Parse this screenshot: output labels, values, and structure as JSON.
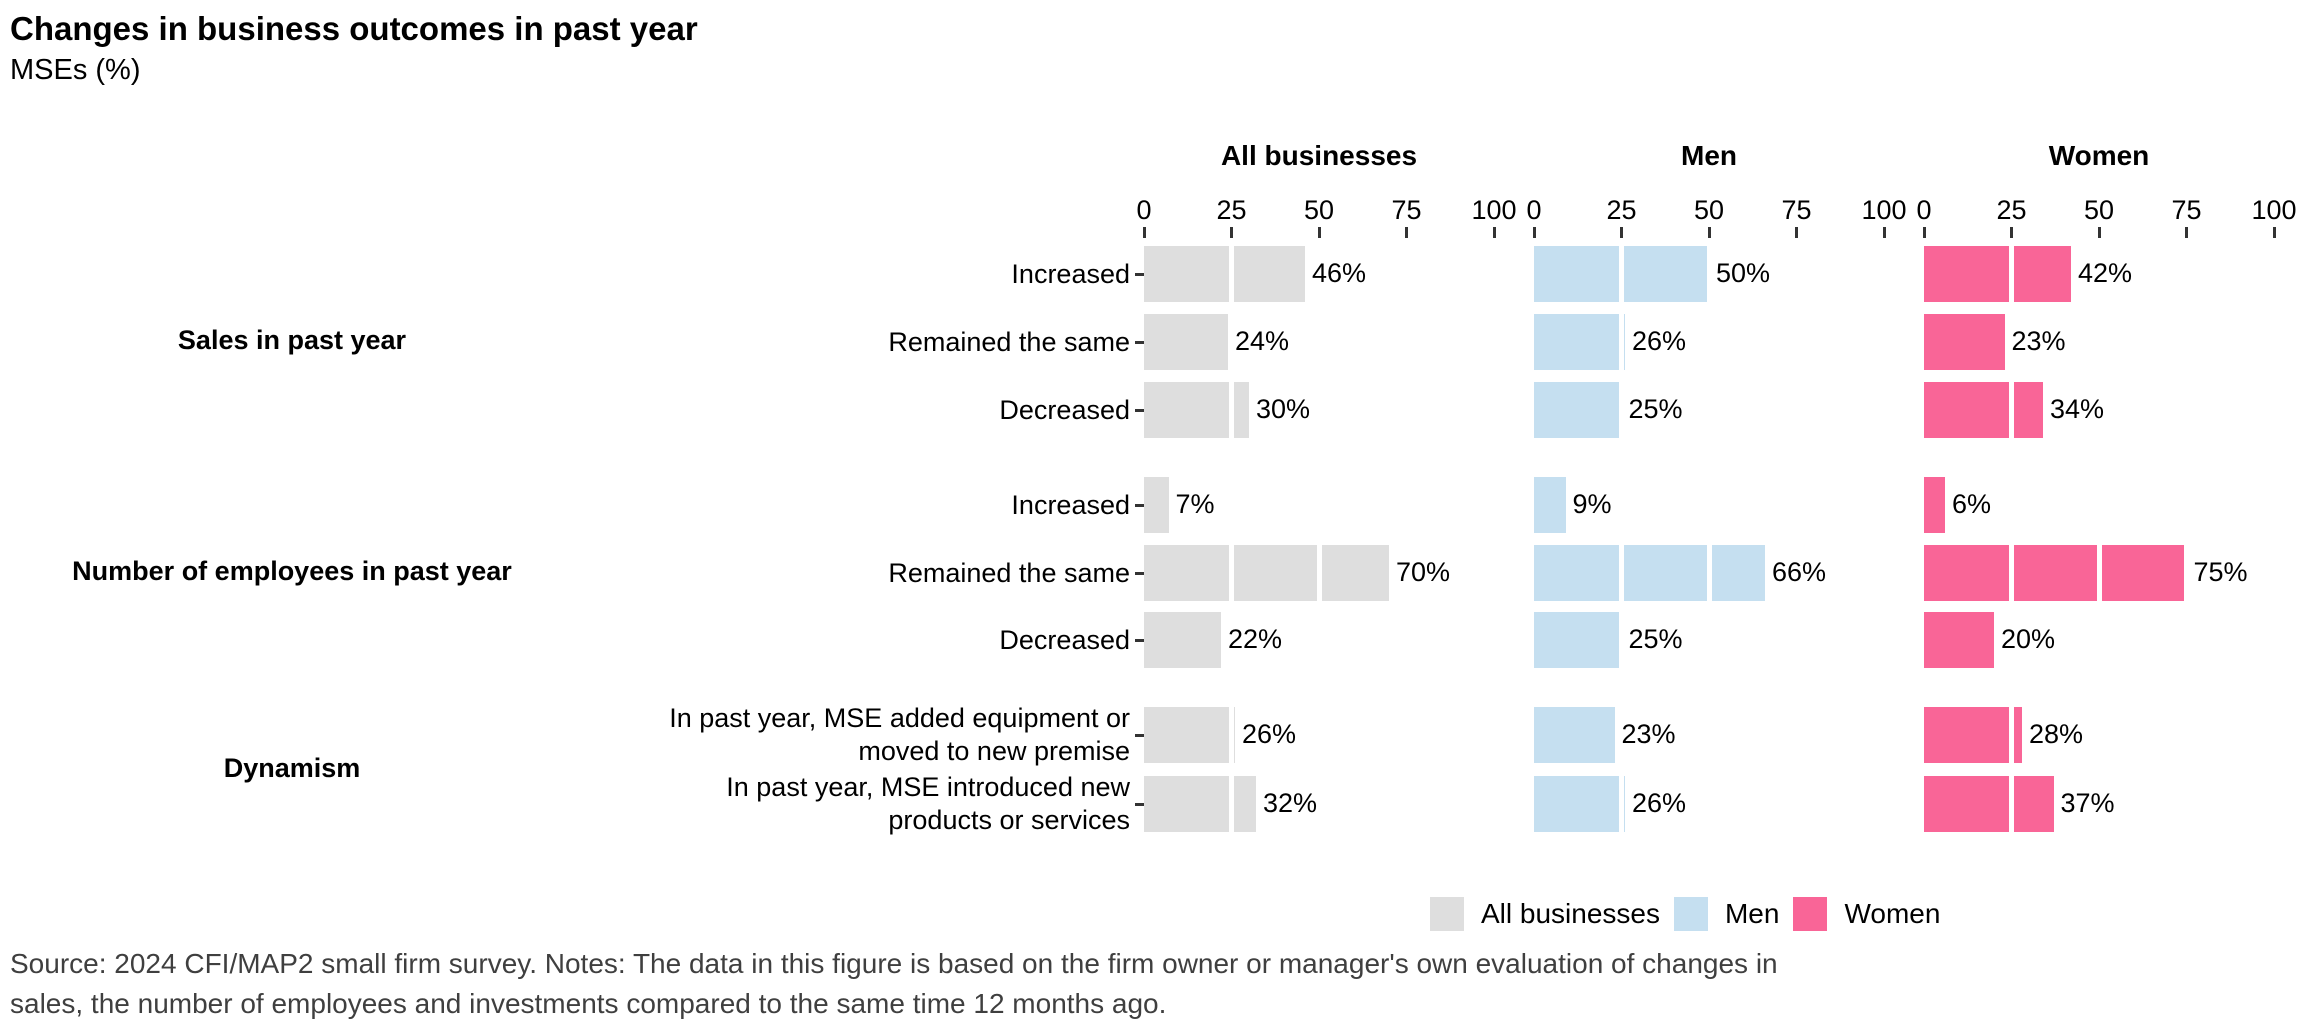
{
  "title": "Changes in business outcomes in past year",
  "subtitle": "MSEs (%)",
  "chart_data": {
    "type": "bar",
    "orientation": "horizontal",
    "value_suffix": "%",
    "axis": {
      "ticks": [
        0,
        25,
        50,
        75,
        100
      ],
      "range": [
        0,
        100
      ],
      "position": "top"
    },
    "panels": [
      "All businesses",
      "Men",
      "Women"
    ],
    "series_colors": {
      "All businesses": "#DEDEDE",
      "Men": "#C5DFF0",
      "Women": "#F96597"
    },
    "grid": "white-overlay-every-25",
    "groups": [
      {
        "label": "Sales in past year",
        "rows": [
          {
            "label": "Increased",
            "values": [
              46,
              50,
              42
            ]
          },
          {
            "label": "Remained the same",
            "values": [
              24,
              26,
              23
            ]
          },
          {
            "label": "Decreased",
            "values": [
              30,
              25,
              34
            ]
          }
        ]
      },
      {
        "label": "Number of employees in past year",
        "rows": [
          {
            "label": "Increased",
            "values": [
              7,
              9,
              6
            ]
          },
          {
            "label": "Remained the same",
            "values": [
              70,
              66,
              75
            ]
          },
          {
            "label": "Decreased",
            "values": [
              22,
              25,
              20
            ]
          }
        ]
      },
      {
        "label": "Dynamism",
        "rows": [
          {
            "label": "In past year, MSE added equipment or moved to new premise",
            "label_lines": [
              "In past year, MSE added equipment or",
              "moved to new premise"
            ],
            "values": [
              26,
              23,
              28
            ]
          },
          {
            "label": "In past year, MSE introduced new products or services",
            "label_lines": [
              "In past year, MSE introduced new",
              "products or services"
            ],
            "values": [
              32,
              26,
              37
            ]
          }
        ]
      }
    ],
    "legend": [
      {
        "label": "All businesses",
        "color": "#DEDEDE"
      },
      {
        "label": "Men",
        "color": "#C5DFF0"
      },
      {
        "label": "Women",
        "color": "#F96597"
      }
    ],
    "legend_position": "bottom-right"
  },
  "source_note": "Source: 2024 CFI/MAP2 small firm survey. Notes: The data in this figure is based on the firm owner or manager's own evaluation of changes in\nsales, the number of employees and investments compared to the same time 12 months ago."
}
